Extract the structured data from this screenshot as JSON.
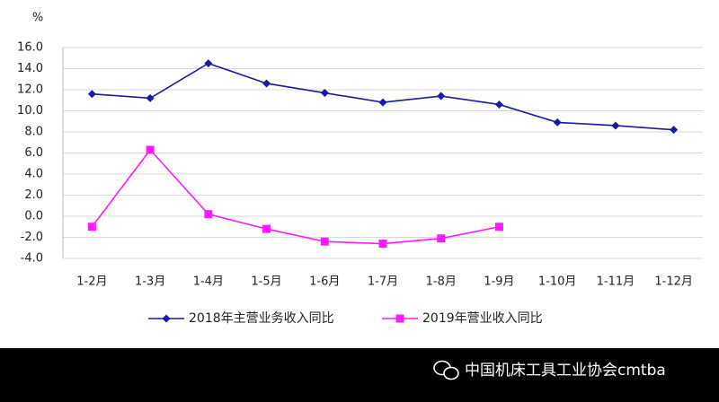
{
  "chart_data": {
    "type": "line",
    "y_unit": "%",
    "categories": [
      "1-2月",
      "1-3月",
      "1-4月",
      "1-5月",
      "1-6月",
      "1-7月",
      "1-8月",
      "1-9月",
      "1-10月",
      "1-11月",
      "1-12月"
    ],
    "series": [
      {
        "name": "2018年主营业务收入同比",
        "color": "#1a1aa6",
        "marker": "diamond",
        "values": [
          11.6,
          11.2,
          14.5,
          12.6,
          11.7,
          10.8,
          11.4,
          10.6,
          8.9,
          8.6,
          8.2
        ]
      },
      {
        "name": "2019年营业收入同比",
        "color": "#ff1aff",
        "marker": "square",
        "values": [
          -1.0,
          6.3,
          0.2,
          -1.2,
          -2.4,
          -2.6,
          -2.1,
          -1.0,
          null,
          null,
          null
        ]
      }
    ],
    "ylim": [
      -4,
      16
    ],
    "yticks": [
      {
        "value": -4,
        "label": "-4.0"
      },
      {
        "value": -2,
        "label": "-2.0"
      },
      {
        "value": 0,
        "label": "0.0"
      },
      {
        "value": 2,
        "label": "2.0"
      },
      {
        "value": 4,
        "label": "4.0"
      },
      {
        "value": 6,
        "label": "6.0"
      },
      {
        "value": 8,
        "label": "8.0"
      },
      {
        "value": 10,
        "label": "10.0"
      },
      {
        "value": 12,
        "label": "12.0"
      },
      {
        "value": 14,
        "label": "14.0"
      },
      {
        "value": 16,
        "label": "16.0"
      }
    ],
    "grid": true,
    "legend": "bottom"
  },
  "watermark": "中国机床工具工业协会cmtba"
}
